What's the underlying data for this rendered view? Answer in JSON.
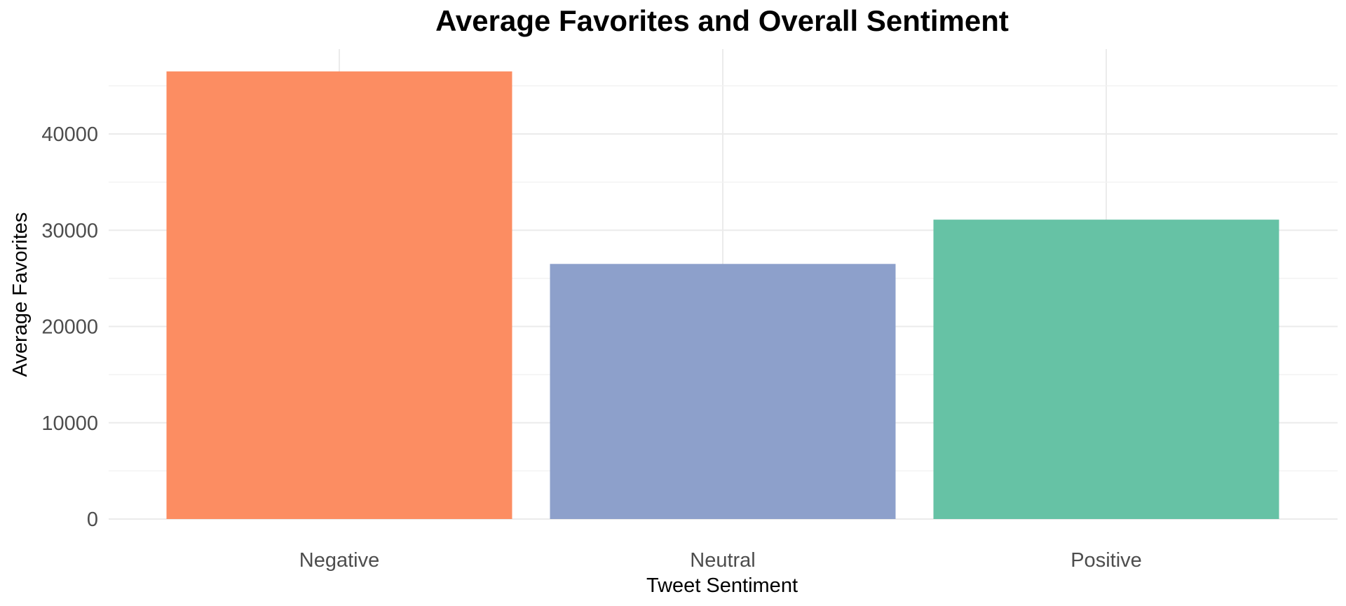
{
  "chart_data": {
    "type": "bar",
    "title": "Average Favorites and Overall Sentiment",
    "xlabel": "Tweet Sentiment",
    "ylabel": "Average Favorites",
    "categories": [
      "Negative",
      "Neutral",
      "Positive"
    ],
    "values": [
      46500,
      26500,
      31100
    ],
    "colors": [
      "#fc8d62",
      "#8da0cb",
      "#66c2a5"
    ],
    "ylim": [
      0,
      48000
    ],
    "yticks": [
      0,
      10000,
      20000,
      30000,
      40000
    ],
    "ytick_labels": [
      "0",
      "10000",
      "20000",
      "30000",
      "40000"
    ],
    "grid": true,
    "legend": "none"
  }
}
